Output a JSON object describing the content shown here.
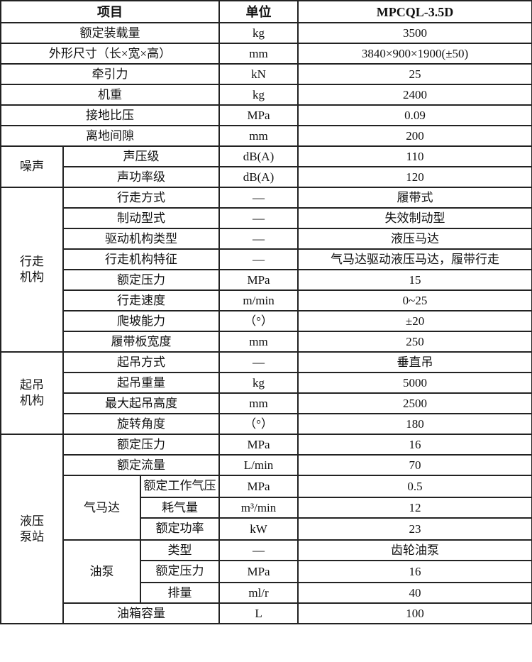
{
  "header": {
    "item": "项目",
    "unit": "单位",
    "model": "MPCQL-3.5D"
  },
  "rows": [
    {
      "cells": [
        {
          "t": "额定装载量",
          "cs": 3
        },
        {
          "t": "kg"
        },
        {
          "t": "3500"
        }
      ]
    },
    {
      "cells": [
        {
          "t": "外形尺寸（长×宽×高）",
          "cs": 3
        },
        {
          "t": "mm"
        },
        {
          "t": "3840×900×1900(±50)"
        }
      ]
    },
    {
      "cells": [
        {
          "t": "牵引力",
          "cs": 3
        },
        {
          "t": "kN"
        },
        {
          "t": "25"
        }
      ]
    },
    {
      "cells": [
        {
          "t": "机重",
          "cs": 3
        },
        {
          "t": "kg"
        },
        {
          "t": "2400"
        }
      ]
    },
    {
      "cells": [
        {
          "t": "接地比压",
          "cs": 3
        },
        {
          "t": "MPa"
        },
        {
          "t": "0.09"
        }
      ]
    },
    {
      "cells": [
        {
          "t": "离地间隙",
          "cs": 3
        },
        {
          "t": "mm"
        },
        {
          "t": "200"
        }
      ]
    },
    {
      "cells": [
        {
          "t": "噪声",
          "rs": 2,
          "grp": true
        },
        {
          "t": "声压级",
          "cs": 2
        },
        {
          "t": "dB(A)"
        },
        {
          "t": "110"
        }
      ]
    },
    {
      "cells": [
        {
          "t": "声功率级",
          "cs": 2
        },
        {
          "t": "dB(A)"
        },
        {
          "t": "120"
        }
      ]
    },
    {
      "cells": [
        {
          "t": "行走机构",
          "rs": 8,
          "grp": true
        },
        {
          "t": "行走方式",
          "cs": 2
        },
        {
          "t": "—"
        },
        {
          "t": "履带式"
        }
      ]
    },
    {
      "cells": [
        {
          "t": "制动型式",
          "cs": 2
        },
        {
          "t": "—"
        },
        {
          "t": "失效制动型"
        }
      ]
    },
    {
      "cells": [
        {
          "t": "驱动机构类型",
          "cs": 2
        },
        {
          "t": "—"
        },
        {
          "t": "液压马达"
        }
      ]
    },
    {
      "cells": [
        {
          "t": "行走机构特征",
          "cs": 2
        },
        {
          "t": "—"
        },
        {
          "t": "气马达驱动液压马达，履带行走"
        }
      ]
    },
    {
      "cells": [
        {
          "t": "额定压力",
          "cs": 2
        },
        {
          "t": "MPa"
        },
        {
          "t": "15"
        }
      ]
    },
    {
      "cells": [
        {
          "t": "行走速度",
          "cs": 2
        },
        {
          "t": "m/min"
        },
        {
          "t": "0~25"
        }
      ]
    },
    {
      "cells": [
        {
          "t": "爬坡能力",
          "cs": 2
        },
        {
          "t": "（°）"
        },
        {
          "t": "±20"
        }
      ]
    },
    {
      "cells": [
        {
          "t": "履带板宽度",
          "cs": 2
        },
        {
          "t": "mm"
        },
        {
          "t": "250"
        }
      ]
    },
    {
      "cells": [
        {
          "t": "起吊机构",
          "rs": 4,
          "grp": true
        },
        {
          "t": "起吊方式",
          "cs": 2
        },
        {
          "t": "—"
        },
        {
          "t": "垂直吊"
        }
      ]
    },
    {
      "cells": [
        {
          "t": "起吊重量",
          "cs": 2
        },
        {
          "t": "kg"
        },
        {
          "t": "5000"
        }
      ]
    },
    {
      "cells": [
        {
          "t": "最大起吊高度",
          "cs": 2
        },
        {
          "t": "mm"
        },
        {
          "t": "2500"
        }
      ]
    },
    {
      "cells": [
        {
          "t": "旋转角度",
          "cs": 2
        },
        {
          "t": "（°）"
        },
        {
          "t": "180"
        }
      ]
    },
    {
      "cells": [
        {
          "t": "液压泵站",
          "rs": 10,
          "grp": true
        },
        {
          "t": "额定压力",
          "cs": 2
        },
        {
          "t": "MPa"
        },
        {
          "t": "16"
        }
      ]
    },
    {
      "cells": [
        {
          "t": "额定流量",
          "cs": 2
        },
        {
          "t": "L/min"
        },
        {
          "t": "70"
        }
      ]
    },
    {
      "cells": [
        {
          "t": "气马达",
          "rs": 3
        },
        {
          "t": "额定工作气压",
          "clip": true
        },
        {
          "t": "MPa"
        },
        {
          "t": "0.5"
        }
      ]
    },
    {
      "cells": [
        {
          "t": "耗气量"
        },
        {
          "t": "m³/min"
        },
        {
          "t": "12"
        }
      ]
    },
    {
      "cells": [
        {
          "t": "额定功率",
          "clip": true
        },
        {
          "t": "kW"
        },
        {
          "t": "23"
        }
      ]
    },
    {
      "cells": [
        {
          "t": "油泵",
          "rs": 3
        },
        {
          "t": "类型"
        },
        {
          "t": "—"
        },
        {
          "t": "齿轮油泵"
        }
      ]
    },
    {
      "cells": [
        {
          "t": "额定压力",
          "clip": true
        },
        {
          "t": "MPa"
        },
        {
          "t": "16"
        }
      ]
    },
    {
      "cells": [
        {
          "t": "排量"
        },
        {
          "t": "ml/r"
        },
        {
          "t": "40"
        }
      ]
    },
    {
      "cells": [
        {
          "t": "油箱容量",
          "cs": 2
        },
        {
          "t": "L"
        },
        {
          "t": "100"
        }
      ]
    }
  ]
}
